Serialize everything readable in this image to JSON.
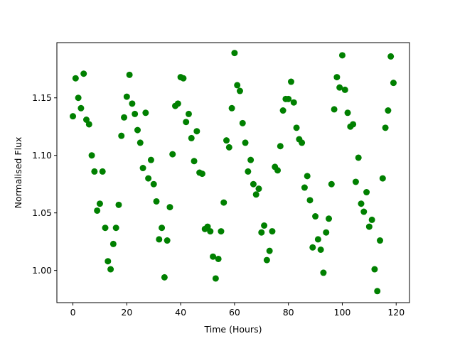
{
  "chart_data": {
    "type": "scatter",
    "xlabel": "Time (Hours)",
    "ylabel": "Normalised Flux",
    "color": "#008000",
    "xlim": [
      -5.95,
      124.95
    ],
    "ylim": [
      0.972,
      1.198
    ],
    "xticks": [
      0,
      20,
      40,
      60,
      80,
      100,
      120
    ],
    "yticks": [
      {
        "value": 1.0,
        "label": "1.00"
      },
      1.05,
      {
        "value": 1.1,
        "label": "1.10"
      },
      {
        "value": 1.15,
        "label": "1.15"
      }
    ],
    "x": [
      0,
      1,
      2,
      3,
      4,
      5,
      6,
      7,
      8,
      9,
      10,
      11,
      12,
      13,
      14,
      15,
      16,
      17,
      18,
      19,
      20,
      21,
      22,
      23,
      24,
      25,
      26,
      27,
      28,
      29,
      30,
      31,
      32,
      33,
      34,
      35,
      36,
      37,
      38,
      39,
      40,
      41,
      42,
      43,
      44,
      45,
      46,
      47,
      48,
      49,
      50,
      51,
      52,
      53,
      54,
      55,
      56,
      57,
      58,
      59,
      60,
      61,
      62,
      63,
      64,
      65,
      66,
      67,
      68,
      69,
      70,
      71,
      72,
      73,
      74,
      75,
      76,
      77,
      78,
      79,
      80,
      81,
      82,
      83,
      84,
      85,
      86,
      87,
      88,
      89,
      90,
      91,
      92,
      93,
      94,
      95,
      96,
      97,
      98,
      99,
      100,
      101,
      102,
      103,
      104,
      105,
      106,
      107,
      108,
      109,
      110,
      111,
      112,
      113,
      114,
      115,
      116,
      117,
      118,
      119
    ],
    "values": [
      1.134,
      1.167,
      1.15,
      1.141,
      1.171,
      1.131,
      1.127,
      1.1,
      1.086,
      1.052,
      1.058,
      1.086,
      1.037,
      1.008,
      1.001,
      1.023,
      1.037,
      1.057,
      1.117,
      1.133,
      1.151,
      1.17,
      1.145,
      1.136,
      1.122,
      1.111,
      1.089,
      1.137,
      1.08,
      1.096,
      1.075,
      1.06,
      1.027,
      1.037,
      0.994,
      1.026,
      1.055,
      1.101,
      1.143,
      1.145,
      1.168,
      1.167,
      1.129,
      1.136,
      1.115,
      1.095,
      1.121,
      1.085,
      1.084,
      1.036,
      1.038,
      1.034,
      1.012,
      0.993,
      1.01,
      1.034,
      1.059,
      1.113,
      1.107,
      1.141,
      1.189,
      1.161,
      1.156,
      1.128,
      1.111,
      1.086,
      1.096,
      1.075,
      1.066,
      1.071,
      1.033,
      1.039,
      1.009,
      1.017,
      1.034,
      1.09,
      1.087,
      1.108,
      1.139,
      1.149,
      1.149,
      1.164,
      1.146,
      1.124,
      1.114,
      1.111,
      1.072,
      1.082,
      1.061,
      1.02,
      1.047,
      1.027,
      1.018,
      0.998,
      1.033,
      1.045,
      1.075,
      1.14,
      1.168,
      1.159,
      1.187,
      1.157,
      1.137,
      1.125,
      1.127,
      1.077,
      1.098,
      1.058,
      1.051,
      1.068,
      1.038,
      1.044,
      1.001,
      0.982,
      1.026,
      1.08,
      1.124,
      1.139,
      1.186,
      1.163
    ]
  }
}
